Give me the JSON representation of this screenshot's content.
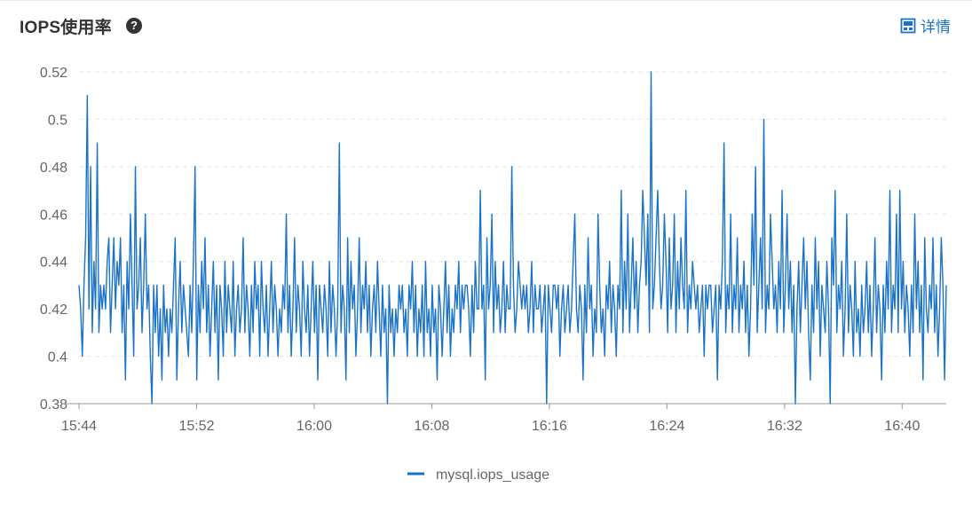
{
  "header": {
    "title": "IOPS使用率",
    "help_icon": "question-circle-icon",
    "detail_label": "详情",
    "detail_icon": "panel-icon"
  },
  "colors": {
    "series": "#1a73c7",
    "grid": "#e6e6e6",
    "axis": "#999999",
    "text": "#666666"
  },
  "chart_data": {
    "type": "line",
    "title": "IOPS使用率",
    "xlabel": "",
    "ylabel": "",
    "ylim": [
      0.38,
      0.52
    ],
    "yticks": [
      0.38,
      0.4,
      0.42,
      0.44,
      0.46,
      0.48,
      0.5,
      0.52
    ],
    "ytick_labels": [
      "0.38",
      "0.4",
      "0.42",
      "0.44",
      "0.46",
      "0.48",
      "0.5",
      "0.52"
    ],
    "xticks": [
      "15:44",
      "15:52",
      "16:00",
      "16:08",
      "16:16",
      "16:24",
      "16:32",
      "16:40"
    ],
    "x_range": [
      "15:44",
      "16:43"
    ],
    "grid": "horizontal dashed",
    "legend_position": "bottom-center",
    "series": [
      {
        "name": "mysql.iops_usage",
        "x_start": "15:44",
        "x_end": "16:43",
        "values": [
          0.43,
          0.42,
          0.4,
          0.43,
          0.45,
          0.51,
          0.42,
          0.48,
          0.41,
          0.44,
          0.42,
          0.49,
          0.41,
          0.43,
          0.42,
          0.43,
          0.42,
          0.44,
          0.45,
          0.41,
          0.43,
          0.45,
          0.42,
          0.44,
          0.43,
          0.45,
          0.41,
          0.43,
          0.39,
          0.44,
          0.42,
          0.46,
          0.43,
          0.4,
          0.48,
          0.42,
          0.43,
          0.45,
          0.41,
          0.43,
          0.46,
          0.42,
          0.43,
          0.4,
          0.38,
          0.43,
          0.41,
          0.43,
          0.4,
          0.42,
          0.39,
          0.43,
          0.41,
          0.42,
          0.4,
          0.42,
          0.41,
          0.43,
          0.45,
          0.39,
          0.42,
          0.44,
          0.41,
          0.43,
          0.42,
          0.41,
          0.4,
          0.43,
          0.41,
          0.44,
          0.48,
          0.39,
          0.43,
          0.41,
          0.44,
          0.42,
          0.45,
          0.41,
          0.43,
          0.4,
          0.42,
          0.44,
          0.41,
          0.43,
          0.39,
          0.43,
          0.42,
          0.4,
          0.44,
          0.41,
          0.43,
          0.42,
          0.41,
          0.44,
          0.4,
          0.42,
          0.43,
          0.41,
          0.42,
          0.45,
          0.41,
          0.43,
          0.42,
          0.4,
          0.43,
          0.41,
          0.44,
          0.42,
          0.43,
          0.4,
          0.44,
          0.42,
          0.41,
          0.43,
          0.4,
          0.42,
          0.44,
          0.41,
          0.43,
          0.42,
          0.4,
          0.42,
          0.41,
          0.43,
          0.42,
          0.46,
          0.41,
          0.43,
          0.4,
          0.42,
          0.45,
          0.41,
          0.43,
          0.42,
          0.4,
          0.44,
          0.42,
          0.41,
          0.43,
          0.4,
          0.42,
          0.44,
          0.41,
          0.43,
          0.39,
          0.43,
          0.42,
          0.41,
          0.43,
          0.42,
          0.4,
          0.44,
          0.41,
          0.43,
          0.42,
          0.4,
          0.42,
          0.49,
          0.41,
          0.43,
          0.42,
          0.39,
          0.45,
          0.41,
          0.44,
          0.42,
          0.43,
          0.4,
          0.42,
          0.45,
          0.41,
          0.43,
          0.42,
          0.44,
          0.41,
          0.43,
          0.4,
          0.42,
          0.43,
          0.41,
          0.44,
          0.42,
          0.4,
          0.43,
          0.41,
          0.42,
          0.38,
          0.43,
          0.41,
          0.42,
          0.4,
          0.42,
          0.41,
          0.43,
          0.42,
          0.43,
          0.41,
          0.42,
          0.4,
          0.43,
          0.42,
          0.44,
          0.41,
          0.43,
          0.4,
          0.42,
          0.41,
          0.43,
          0.4,
          0.44,
          0.41,
          0.42,
          0.4,
          0.43,
          0.41,
          0.42,
          0.39,
          0.43,
          0.42,
          0.4,
          0.42,
          0.44,
          0.41,
          0.43,
          0.4,
          0.42,
          0.41,
          0.43,
          0.42,
          0.44,
          0.41,
          0.43,
          0.42,
          0.43,
          0.43,
          0.42,
          0.4,
          0.43,
          0.41,
          0.44,
          0.42,
          0.42,
          0.47,
          0.42,
          0.43,
          0.39,
          0.45,
          0.42,
          0.43,
          0.46,
          0.41,
          0.44,
          0.42,
          0.43,
          0.41,
          0.42,
          0.44,
          0.41,
          0.43,
          0.42,
          0.42,
          0.48,
          0.43,
          0.41,
          0.42,
          0.44,
          0.43,
          0.42,
          0.43,
          0.42,
          0.43,
          0.41,
          0.42,
          0.44,
          0.41,
          0.43,
          0.42,
          0.42,
          0.43,
          0.41,
          0.42,
          0.43,
          0.38,
          0.43,
          0.42,
          0.41,
          0.43,
          0.43,
          0.42,
          0.43,
          0.4,
          0.42,
          0.43,
          0.41,
          0.42,
          0.43,
          0.41,
          0.42,
          0.44,
          0.46,
          0.42,
          0.41,
          0.43,
          0.42,
          0.39,
          0.43,
          0.41,
          0.45,
          0.42,
          0.43,
          0.4,
          0.42,
          0.41,
          0.46,
          0.43,
          0.41,
          0.42,
          0.4,
          0.43,
          0.42,
          0.44,
          0.41,
          0.43,
          0.42,
          0.4,
          0.43,
          0.42,
          0.47,
          0.41,
          0.44,
          0.42,
          0.46,
          0.41,
          0.43,
          0.45,
          0.42,
          0.44,
          0.41,
          0.43,
          0.44,
          0.47,
          0.45,
          0.43,
          0.46,
          0.41,
          0.52,
          0.42,
          0.43,
          0.45,
          0.47,
          0.44,
          0.42,
          0.43,
          0.46,
          0.44,
          0.41,
          0.45,
          0.42,
          0.43,
          0.46,
          0.41,
          0.44,
          0.42,
          0.45,
          0.43,
          0.42,
          0.47,
          0.41,
          0.43,
          0.42,
          0.44,
          0.43,
          0.42,
          0.43,
          0.41,
          0.42,
          0.43,
          0.4,
          0.43,
          0.42,
          0.43,
          0.43,
          0.41,
          0.42,
          0.43,
          0.39,
          0.43,
          0.42,
          0.44,
          0.49,
          0.41,
          0.43,
          0.42,
          0.46,
          0.41,
          0.43,
          0.42,
          0.45,
          0.41,
          0.43,
          0.42,
          0.44,
          0.41,
          0.43,
          0.4,
          0.42,
          0.46,
          0.43,
          0.48,
          0.41,
          0.43,
          0.45,
          0.42,
          0.5,
          0.41,
          0.43,
          0.42,
          0.46,
          0.44,
          0.42,
          0.43,
          0.41,
          0.44,
          0.42,
          0.47,
          0.41,
          0.43,
          0.46,
          0.42,
          0.44,
          0.41,
          0.43,
          0.38,
          0.42,
          0.44,
          0.41,
          0.43,
          0.45,
          0.42,
          0.44,
          0.41,
          0.39,
          0.43,
          0.41,
          0.45,
          0.42,
          0.44,
          0.4,
          0.43,
          0.42,
          0.41,
          0.44,
          0.42,
          0.38,
          0.45,
          0.43,
          0.47,
          0.41,
          0.43,
          0.42,
          0.44,
          0.4,
          0.42,
          0.46,
          0.41,
          0.43,
          0.42,
          0.4,
          0.44,
          0.41,
          0.42,
          0.4,
          0.43,
          0.41,
          0.42,
          0.44,
          0.41,
          0.43,
          0.4,
          0.42,
          0.45,
          0.41,
          0.43,
          0.42,
          0.39,
          0.43,
          0.41,
          0.44,
          0.42,
          0.47,
          0.41,
          0.43,
          0.42,
          0.46,
          0.41,
          0.47,
          0.42,
          0.44,
          0.41,
          0.43,
          0.42,
          0.4,
          0.43,
          0.41,
          0.46,
          0.42,
          0.44,
          0.41,
          0.43,
          0.39,
          0.45,
          0.42,
          0.41,
          0.43,
          0.42,
          0.45,
          0.41,
          0.43,
          0.4,
          0.42,
          0.45,
          0.43,
          0.39,
          0.43
        ]
      }
    ]
  }
}
